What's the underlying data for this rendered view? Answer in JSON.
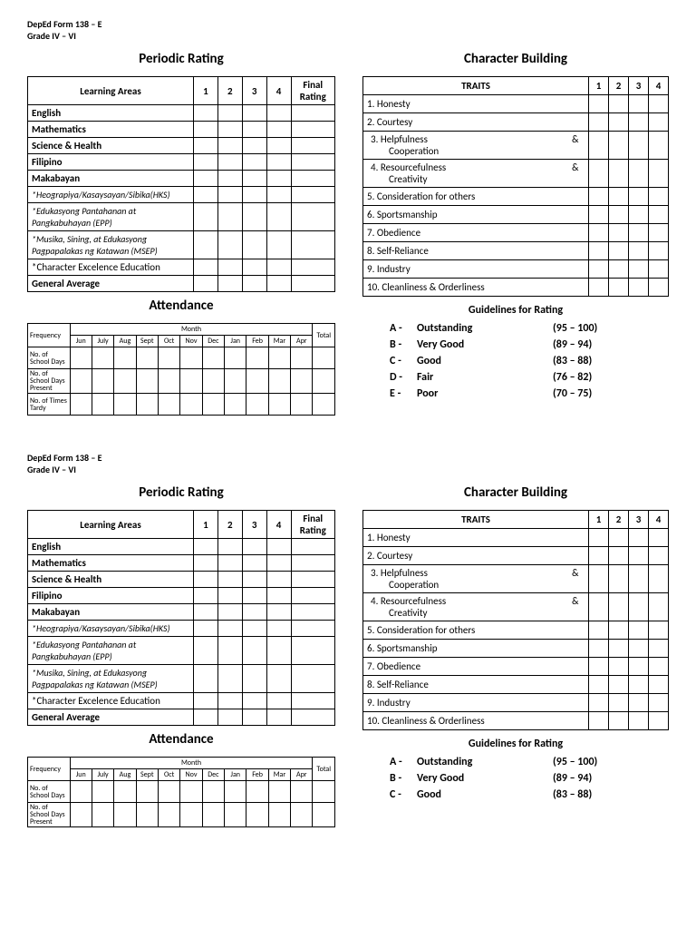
{
  "header": {
    "l1": "DepEd Form 138 – E",
    "l2": "Grade IV – VI"
  },
  "titles": {
    "periodic": "Periodic Rating",
    "attendance": "Attendance",
    "character": "Character Building",
    "guidelines": "Guidelines for Rating"
  },
  "periodic": {
    "head_la": "Learning Areas",
    "head_c1": "1",
    "head_c2": "2",
    "head_c3": "3",
    "head_c4": "4",
    "head_fr": "Final Rating",
    "rows": [
      {
        "label": "English",
        "bold": true
      },
      {
        "label": "Mathematics",
        "bold": true
      },
      {
        "label": "Science & Health",
        "bold": true
      },
      {
        "label": "Filipino",
        "bold": true
      },
      {
        "label": "Makabayan",
        "bold": true
      },
      {
        "label": "*Heograpiya/Kasaysayan/Sibika(HKS)",
        "italic": true
      },
      {
        "label": "*Edukasyong Pantahanan at Pangkabuhayan (EPP)",
        "italic": true
      },
      {
        "label": "*Musika, Sining, at Edukasyong Pagpapalakas ng Katawan (MSEP)",
        "italic": true
      },
      {
        "label": "*Character Excelence Education",
        "bold": false
      },
      {
        "label": "General Average",
        "bold": true
      }
    ]
  },
  "attendance": {
    "freq": "Frequency",
    "month": "Month",
    "total": "Total",
    "months": [
      "Jun",
      "July",
      "Aug",
      "Sept",
      "Oct",
      "Nov",
      "Dec",
      "Jan",
      "Feb",
      "Mar",
      "Apr"
    ],
    "rows": [
      "No. of School Days",
      "No. of School Days Present",
      "No. of Times Tardy"
    ]
  },
  "traits": {
    "head": "TRAITS",
    "c1": "1",
    "c2": "2",
    "c3": "3",
    "c4": "4",
    "items": [
      "1.  Honesty",
      "2.  Courtesy",
      "3.  Helpfulness & Cooperation",
      "4.  Resourcefulness & Creativity",
      "5.  Consideration for others",
      "6.  Sportsmanship",
      "7.  Obedience",
      "8.  Self-Reliance",
      "9.  Industry",
      "10. Cleanliness & Orderliness"
    ],
    "amp_rows": {
      "2": {
        "line1a": "3.  Helpfulness",
        "line1b": "&",
        "line2": "Cooperation"
      },
      "3": {
        "line1a": "4.  Resourcefulness",
        "line1b": "&",
        "line2": "Creativity"
      }
    }
  },
  "guidelines": [
    {
      "g": "A  -",
      "d": "Outstanding",
      "r": "(95 – 100)"
    },
    {
      "g": "B  -",
      "d": "Very Good",
      "r": "(89 – 94)"
    },
    {
      "g": "C  -",
      "d": "Good",
      "r": "(83 – 88)"
    },
    {
      "g": "D  -",
      "d": "Fair",
      "r": "(76 – 82)"
    },
    {
      "g": "E  -",
      "d": "Poor",
      "r": "(70 – 75)"
    }
  ],
  "colors": {
    "border": "#000000",
    "text": "#000000",
    "bg": "#ffffff"
  }
}
